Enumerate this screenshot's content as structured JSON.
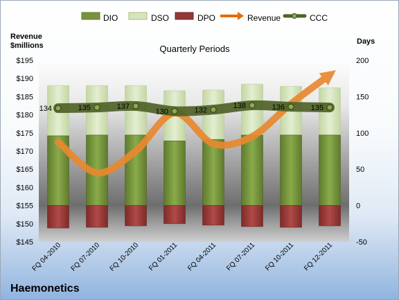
{
  "legend": {
    "dio": "DIO",
    "dso": "DSO",
    "dpo": "DPO",
    "revenue": "Revenue",
    "ccc": "CCC"
  },
  "axes": {
    "left_title_line1": "Revenue",
    "left_title_line2": "$millions",
    "right_title": "Days"
  },
  "subtitle": "Quarterly Periods",
  "company": "Haemonetics",
  "chart_data": {
    "type": "bar",
    "subtitle": "Quarterly Periods",
    "categories": [
      "FQ 04-2010",
      "FQ 07-2010",
      "FQ 10-2010",
      "FQ 01-2011",
      "FQ 04-2011",
      "FQ 07-2011",
      "FQ 10-2011",
      "FQ 12-2011"
    ],
    "series": [
      {
        "name": "DIO",
        "type": "bar",
        "axis": "right",
        "values": [
          96,
          97,
          97,
          89,
          91,
          97,
          97,
          97
        ]
      },
      {
        "name": "DSO",
        "type": "bar",
        "axis": "right",
        "values": [
          69,
          68,
          68,
          69,
          68,
          70,
          67,
          65
        ]
      },
      {
        "name": "DPO",
        "type": "bar",
        "axis": "right",
        "values": [
          -31,
          -30,
          -28,
          -25,
          -27,
          -29,
          -30,
          -28
        ]
      },
      {
        "name": "Revenue",
        "type": "line",
        "axis": "left",
        "values": [
          172.5,
          164.0,
          170.0,
          180.5,
          172.0,
          174.0,
          183.0,
          191.0
        ]
      },
      {
        "name": "CCC",
        "type": "line",
        "axis": "right",
        "values": [
          134,
          135,
          137,
          130,
          132,
          138,
          136,
          135
        ],
        "labels": [
          "134",
          "135",
          "137",
          "130",
          "132",
          "138",
          "136",
          "135"
        ]
      }
    ],
    "y_left": {
      "min": 145,
      "max": 195,
      "step": 5,
      "ticks": [
        "$145",
        "$150",
        "$155",
        "$160",
        "$165",
        "$170",
        "$175",
        "$180",
        "$185",
        "$190",
        "$195"
      ]
    },
    "y_right": {
      "min": -50,
      "max": 200,
      "step": 50,
      "ticks": [
        "-50",
        "0",
        "50",
        "100",
        "150",
        "200"
      ]
    },
    "legend_position": "top",
    "grid": false,
    "colors": {
      "dio": "#77933c",
      "dso": "#d7e4bd",
      "dpo": "#953735",
      "revenue": "#e46c0a",
      "ccc": "#4f6228"
    }
  }
}
